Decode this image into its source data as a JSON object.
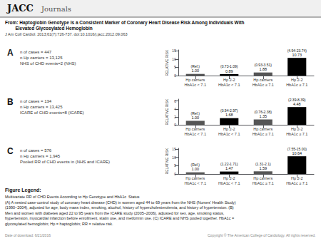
{
  "header": [
    "JACC",
    "Journals"
  ],
  "title": [
    "From: Haptoglobin Genotype Is a Consistent Marker of Coronary Heart Disease Risk Among Individuals With",
    "        Elevated Glycosylated Hemoglobin"
  ],
  "subtitle": "J Am Coll Cardiol. 2013;61(7):726-737. doi:10.1016/j.jacc.2012.09.063",
  "annotations": [
    "Figure Legend:",
    "Multivariate RR of CHD Events According to Hp Genotype and HbA1c  Status",
    "(A) A nested case-control study of coronary heart disease (CHD) in women aged 44 to 69 years from the NHS (Nurses' Health Study)",
    "(1990–2004), adjusted for age, body mass index, smoking, alcohol, history of hypercholesterolemia, and history of hypertension. (B)",
    "Men and women with diabetes aged 22 to 95 years from the ICARE study (2005–2006), adjusted for sex, age, smoking status,",
    "hypertension, myocardial infarction before enrollment, statin use, and metformin use. (C) ICARE and NHS pooled together. HbA1c =",
    "glycosylated hemoglobin; Hp = haptoglobin; RR = relative risk."
  ],
  "footer": [
    "Date of download: 6/21/2016",
    "Copyright © The American College of Cardiology. All rights reserved."
  ],
  "chart_data": [
    {
      "type": "bar",
      "title": "A",
      "subtitle": [
        "n of cases = 447",
        "n Hp carriers = 13,125",
        "NHS of CHD events=2 (NHS)"
      ],
      "categories": [
        "Hp carriers\nHbA1c < 7.1",
        "Hp 2-2\nHbA1c < 7.1",
        "Hp carriers\nHbA1c ≥ 7.1",
        "Hp 2-2\nHbA1c ≥ 7.1"
      ],
      "values": [
        1.0,
        0.89,
        1.88,
        10.73
      ],
      "value_labels": [
        "1.00",
        "0.89",
        "1.88",
        "10.73"
      ],
      "interval_labels": [
        "(Ref.)",
        "(0.73-1.09)",
        "(0.93-3.51)",
        "(4.94-23.74)"
      ],
      "colors": [
        "#555555",
        "#000000",
        "#555555",
        "#000000"
      ],
      "ylabel": "RELATIVE RISK",
      "ylim": [
        0,
        15.5585
      ],
      "yticks": [
        0,
        5,
        10,
        15
      ],
      "data_labels": true,
      "grid": false
    },
    {
      "type": "bar",
      "title": "B",
      "subtitle": [
        "n of cases = 134",
        "n Hp carriers = 13,425",
        "ICARE of CHD events=8 (ICARE)"
      ],
      "categories": [
        "Hp carriers\nHbA1c < 7.1",
        "Hp 2-2\nHbA1c < 7.1",
        "Hp carriers\nHbA1c ≥ 7.1",
        "Hp 2-2\nHbA1c ≥ 7.1"
      ],
      "values": [
        1.0,
        1.68,
        1.35,
        4.48
      ],
      "value_labels": [
        "1.00",
        "1.68",
        "1.35",
        "4.48"
      ],
      "interval_labels": [
        "(Ref.)",
        "(0.94-2.97)",
        "(0.76-2.38)",
        "(2.39-8.39)"
      ],
      "colors": [
        "#555555",
        "#000000",
        "#555555",
        "#000000"
      ],
      "ylabel": "RELATIVE RISK",
      "ylim": [
        0,
        6.496
      ],
      "yticks": [
        0,
        2,
        4,
        6
      ],
      "data_labels": true,
      "grid": false
    },
    {
      "type": "bar",
      "title": "C",
      "subtitle": [
        "n of cases = 576",
        "n Hp carriers = 1,945",
        "Pooled RR of CHD events in (NHS and ICARE)"
      ],
      "categories": [
        "Hp carriers\nHbA1c < 7.1",
        "Hp 2-2\nHbA1c < 7.1",
        "Hp carriers\nHbA1c ≥ 7.1",
        "Hp 2-2\nHbA1c ≥ 7.1"
      ],
      "values": [
        1.0,
        1.47,
        1.59,
        10.64
      ],
      "value_labels": [
        "1.00",
        "1.47",
        "1.59",
        "10.64"
      ],
      "interval_labels": [
        "(Ref.)",
        "(1.22-1.71)",
        "(1.31-2.1)",
        "(7.55-15.00)"
      ],
      "colors": [
        "#555555",
        "#000000",
        "#555555",
        "#000000"
      ],
      "ylabel": "RELATIVE RISK",
      "ylim": [
        0,
        15.428
      ],
      "yticks": [
        0,
        5,
        10,
        15
      ],
      "data_labels": true,
      "grid": false
    }
  ]
}
